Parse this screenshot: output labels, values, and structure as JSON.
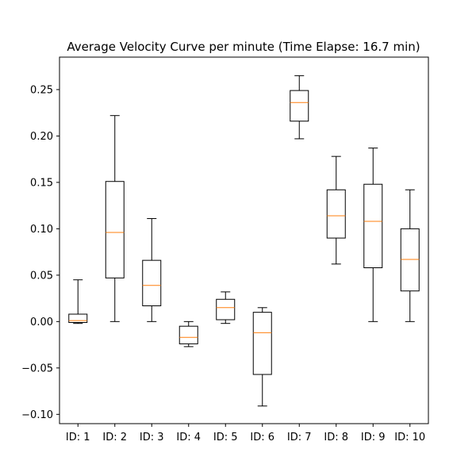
{
  "chart_data": {
    "type": "boxplot",
    "title": "Average Velocity Curve per minute (Time Elapse: 16.7 min)",
    "xlabel": "",
    "ylabel": "",
    "ylim": [
      -0.11,
      0.285
    ],
    "yticks": [
      -0.1,
      -0.05,
      0.0,
      0.05,
      0.1,
      0.15,
      0.2,
      0.25
    ],
    "ytick_labels": [
      "−0.10",
      "−0.05",
      "0.00",
      "0.05",
      "0.10",
      "0.15",
      "0.20",
      "0.25"
    ],
    "grid": false,
    "categories": [
      "ID: 1",
      "ID: 2",
      "ID: 3",
      "ID: 4",
      "ID: 5",
      "ID: 6",
      "ID: 7",
      "ID: 8",
      "ID: 9",
      "ID: 10"
    ],
    "boxes": [
      {
        "whisker_low": -0.002,
        "q1": -0.001,
        "median": 0.001,
        "q3": 0.008,
        "whisker_high": 0.045
      },
      {
        "whisker_low": 0.0,
        "q1": 0.047,
        "median": 0.096,
        "q3": 0.151,
        "whisker_high": 0.222
      },
      {
        "whisker_low": 0.0,
        "q1": 0.017,
        "median": 0.039,
        "q3": 0.066,
        "whisker_high": 0.111
      },
      {
        "whisker_low": -0.027,
        "q1": -0.024,
        "median": -0.017,
        "q3": -0.005,
        "whisker_high": 0.0
      },
      {
        "whisker_low": -0.002,
        "q1": 0.002,
        "median": 0.015,
        "q3": 0.024,
        "whisker_high": 0.032
      },
      {
        "whisker_low": -0.091,
        "q1": -0.057,
        "median": -0.012,
        "q3": 0.01,
        "whisker_high": 0.015
      },
      {
        "whisker_low": 0.197,
        "q1": 0.216,
        "median": 0.236,
        "q3": 0.249,
        "whisker_high": 0.265
      },
      {
        "whisker_low": 0.062,
        "q1": 0.09,
        "median": 0.114,
        "q3": 0.142,
        "whisker_high": 0.178
      },
      {
        "whisker_low": 0.0,
        "q1": 0.058,
        "median": 0.108,
        "q3": 0.148,
        "whisker_high": 0.187
      },
      {
        "whisker_low": 0.0,
        "q1": 0.033,
        "median": 0.067,
        "q3": 0.1,
        "whisker_high": 0.142
      }
    ],
    "colors": {
      "box": "#000000",
      "median": "#ff7f0e",
      "axes": "#000000"
    }
  }
}
